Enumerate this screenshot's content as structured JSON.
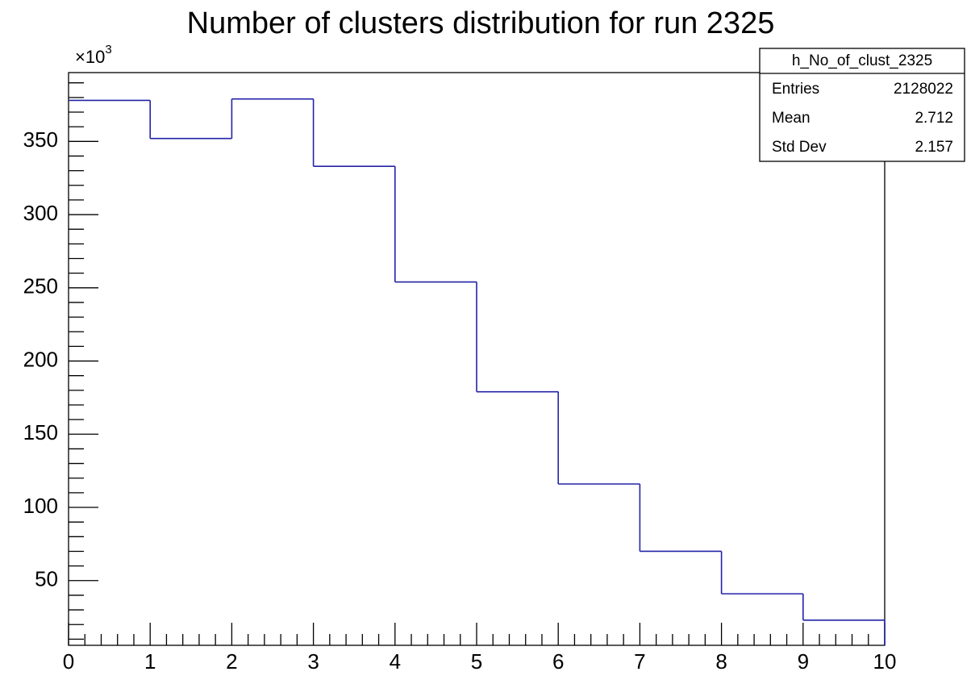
{
  "chart_data": {
    "type": "histogram",
    "title": "Number of clusters distribution for run 2325",
    "y_multiplier": "×10",
    "y_multiplier_exponent": "3",
    "bins": [
      0,
      1,
      2,
      3,
      4,
      5,
      6,
      7,
      8,
      9,
      10
    ],
    "values": [
      378,
      352,
      379,
      333,
      254,
      179,
      116,
      70,
      41,
      23
    ],
    "color": "#2323a8",
    "xlim": [
      0,
      10
    ],
    "xticks": [
      0,
      1,
      2,
      3,
      4,
      5,
      6,
      7,
      8,
      9,
      10
    ],
    "ylim": [
      5.8,
      397
    ],
    "yticks": [
      50,
      100,
      150,
      200,
      250,
      300,
      350
    ],
    "stats": {
      "name": "h_No_of_clust_2325",
      "rows": [
        {
          "label": "Entries",
          "value": "2128022"
        },
        {
          "label": "Mean",
          "value": "2.712"
        },
        {
          "label": "Std Dev",
          "value": "2.157"
        }
      ]
    }
  }
}
